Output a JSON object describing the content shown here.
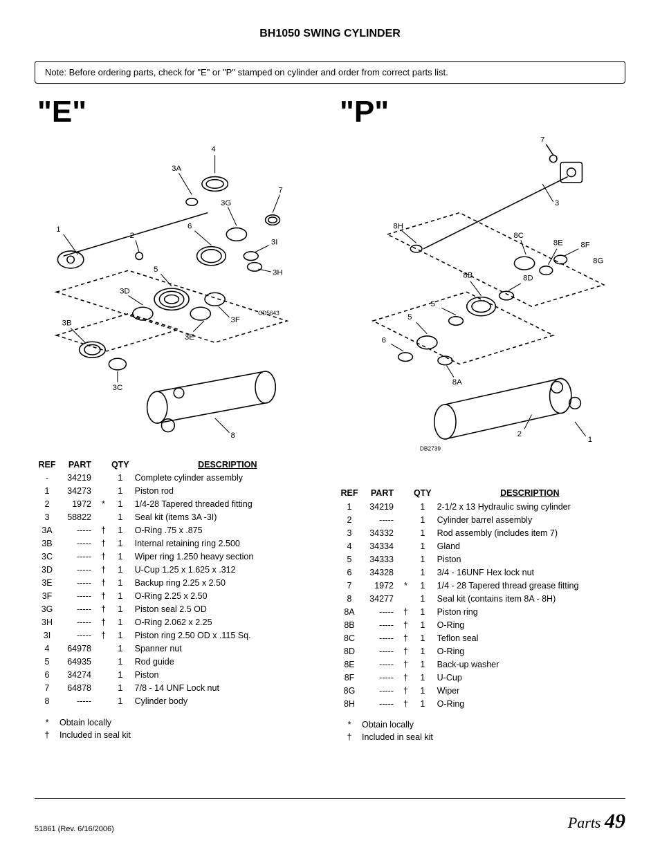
{
  "title": "BH1050 SWING CYLINDER",
  "note": "Note: Before ordering parts, check for \"E\" or \"P\" stamped on cylinder and order from correct parts list.",
  "variants": {
    "E": {
      "label": "\"E\"",
      "drawing_id": "CD5643",
      "callouts": [
        "1",
        "2",
        "3A",
        "3B",
        "3C",
        "3D",
        "3E",
        "3F",
        "3G",
        "3H",
        "3I",
        "4",
        "5",
        "6",
        "7",
        "8"
      ],
      "headers": {
        "ref": "REF",
        "part": "PART",
        "qty": "QTY",
        "desc": "DESCRIPTION"
      },
      "rows": [
        {
          "ref": "-",
          "part": "34219",
          "mark": "",
          "qty": "1",
          "desc": "Complete cylinder assembly"
        },
        {
          "ref": "1",
          "part": "34273",
          "mark": "",
          "qty": "1",
          "desc": "Piston rod"
        },
        {
          "ref": "2",
          "part": "1972",
          "mark": "*",
          "qty": "1",
          "desc": "1/4-28 Tapered threaded fitting"
        },
        {
          "ref": "3",
          "part": "58822",
          "mark": "",
          "qty": "1",
          "desc": "Seal kit (items 3A -3I)"
        },
        {
          "ref": "3A",
          "part": "-----",
          "mark": "†",
          "qty": "1",
          "desc": "O-Ring .75 x .875"
        },
        {
          "ref": "3B",
          "part": "-----",
          "mark": "†",
          "qty": "1",
          "desc": "Internal retaining ring 2.500"
        },
        {
          "ref": "3C",
          "part": "-----",
          "mark": "†",
          "qty": "1",
          "desc": "Wiper ring 1.250 heavy section"
        },
        {
          "ref": "3D",
          "part": "-----",
          "mark": "†",
          "qty": "1",
          "desc": "U-Cup 1.25 x 1.625 x .312"
        },
        {
          "ref": "3E",
          "part": "-----",
          "mark": "†",
          "qty": "1",
          "desc": "Backup ring 2.25 x 2.50"
        },
        {
          "ref": "3F",
          "part": "-----",
          "mark": "†",
          "qty": "1",
          "desc": "O-Ring 2.25 x 2.50"
        },
        {
          "ref": "3G",
          "part": "-----",
          "mark": "†",
          "qty": "1",
          "desc": "Piston seal 2.5 OD"
        },
        {
          "ref": "3H",
          "part": "-----",
          "mark": "†",
          "qty": "1",
          "desc": "O-Ring 2.062 x 2.25"
        },
        {
          "ref": "3I",
          "part": "-----",
          "mark": "†",
          "qty": "1",
          "desc": "Piston ring 2.50 OD x .115 Sq."
        },
        {
          "ref": "4",
          "part": "64978",
          "mark": "",
          "qty": "1",
          "desc": "Spanner nut"
        },
        {
          "ref": "5",
          "part": "64935",
          "mark": "",
          "qty": "1",
          "desc": "Rod guide"
        },
        {
          "ref": "6",
          "part": "34274",
          "mark": "",
          "qty": "1",
          "desc": "Piston"
        },
        {
          "ref": "7",
          "part": "64878",
          "mark": "",
          "qty": "1",
          "desc": "7/8 - 14 UNF Lock nut"
        },
        {
          "ref": "8",
          "part": "-----",
          "mark": "",
          "qty": "1",
          "desc": "Cylinder body"
        }
      ],
      "footnotes": [
        {
          "sym": "*",
          "text": "Obtain locally"
        },
        {
          "sym": "†",
          "text": "Included in seal kit"
        }
      ]
    },
    "P": {
      "label": "\"P\"",
      "drawing_id": "DB2739",
      "callouts": [
        "1",
        "2",
        "3",
        "5",
        "6",
        "7",
        "8A",
        "8B",
        "8C",
        "8D",
        "8E",
        "8F",
        "8G",
        "8H"
      ],
      "headers": {
        "ref": "REF",
        "part": "PART",
        "qty": "QTY",
        "desc": "DESCRIPTION"
      },
      "rows": [
        {
          "ref": "1",
          "part": "34219",
          "mark": "",
          "qty": "1",
          "desc": "2-1/2 x 13 Hydraulic swing cylinder"
        },
        {
          "ref": "2",
          "part": "-----",
          "mark": "",
          "qty": "1",
          "desc": "Cylinder barrel assembly"
        },
        {
          "ref": "3",
          "part": "34332",
          "mark": "",
          "qty": "1",
          "desc": "Rod assembly (includes item 7)"
        },
        {
          "ref": "4",
          "part": "34334",
          "mark": "",
          "qty": "1",
          "desc": "Gland"
        },
        {
          "ref": "5",
          "part": "34333",
          "mark": "",
          "qty": "1",
          "desc": "Piston"
        },
        {
          "ref": "6",
          "part": "34328",
          "mark": "",
          "qty": "1",
          "desc": "3/4 - 16UNF Hex lock nut"
        },
        {
          "ref": "7",
          "part": "1972",
          "mark": "*",
          "qty": "1",
          "desc": "1/4 - 28 Tapered thread grease fitting"
        },
        {
          "ref": "8",
          "part": "34277",
          "mark": "",
          "qty": "1",
          "desc": "Seal kit (contains item 8A - 8H)"
        },
        {
          "ref": "8A",
          "part": "-----",
          "mark": "†",
          "qty": "1",
          "desc": "Piston ring"
        },
        {
          "ref": "8B",
          "part": "-----",
          "mark": "†",
          "qty": "1",
          "desc": "O-Ring"
        },
        {
          "ref": "8C",
          "part": "-----",
          "mark": "†",
          "qty": "1",
          "desc": "Teflon seal"
        },
        {
          "ref": "8D",
          "part": "-----",
          "mark": "†",
          "qty": "1",
          "desc": "O-Ring"
        },
        {
          "ref": "8E",
          "part": "-----",
          "mark": "†",
          "qty": "1",
          "desc": "Back-up washer"
        },
        {
          "ref": "8F",
          "part": "-----",
          "mark": "†",
          "qty": "1",
          "desc": "U-Cup"
        },
        {
          "ref": "8G",
          "part": "-----",
          "mark": "†",
          "qty": "1",
          "desc": "Wiper"
        },
        {
          "ref": "8H",
          "part": "-----",
          "mark": "†",
          "qty": "1",
          "desc": "O-Ring"
        }
      ],
      "footnotes": [
        {
          "sym": "*",
          "text": "Obtain locally"
        },
        {
          "sym": "†",
          "text": "Included in seal kit"
        }
      ]
    }
  },
  "footer": {
    "doc_id": "51861",
    "revision": "(Rev. 6/16/2006)",
    "section": "Parts",
    "page": "49"
  }
}
